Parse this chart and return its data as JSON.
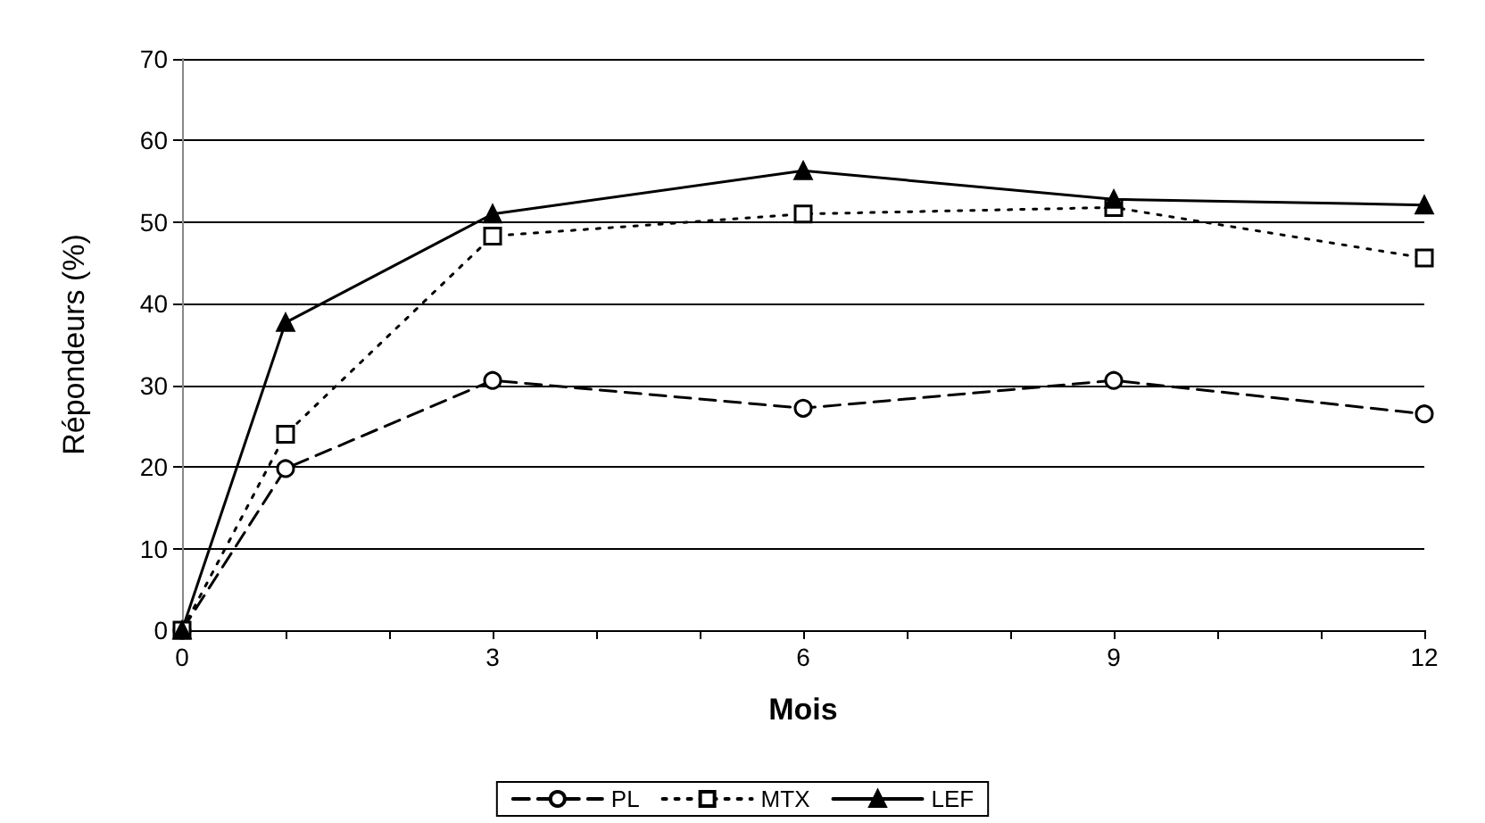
{
  "chart_data": {
    "type": "line",
    "xlabel": "Mois",
    "ylabel": "Répondeurs (%)",
    "x": [
      0,
      1,
      3,
      6,
      9,
      12
    ],
    "series": [
      {
        "name": "PL",
        "color": "#000000",
        "marker": "circle",
        "line_style": "dashed",
        "values": [
          0,
          19.8,
          30.6,
          27.2,
          30.6,
          26.5
        ]
      },
      {
        "name": "MTX",
        "color": "#000000",
        "marker": "square",
        "line_style": "dotted",
        "values": [
          0,
          24,
          48.3,
          51,
          51.8,
          45.6
        ]
      },
      {
        "name": "LEF",
        "color": "#000000",
        "marker": "triangle",
        "line_style": "solid",
        "values": [
          0,
          37.7,
          51,
          56.3,
          52.8,
          52.1
        ]
      }
    ],
    "xlim": [
      0,
      12
    ],
    "xticks": [
      0,
      {
        "value": 1,
        "label": null
      },
      {
        "value": 2,
        "label": null
      },
      3,
      {
        "value": 4,
        "label": null
      },
      {
        "value": 5,
        "label": null
      },
      6,
      {
        "value": 7,
        "label": null
      },
      {
        "value": 8,
        "label": null
      },
      9,
      {
        "value": 10,
        "label": null
      },
      {
        "value": 11,
        "label": null
      },
      12
    ],
    "ylim": [
      0,
      70
    ],
    "yticks": [
      0,
      10,
      20,
      30,
      40,
      50,
      60,
      70
    ],
    "grid": "y",
    "legend": "bottom"
  }
}
